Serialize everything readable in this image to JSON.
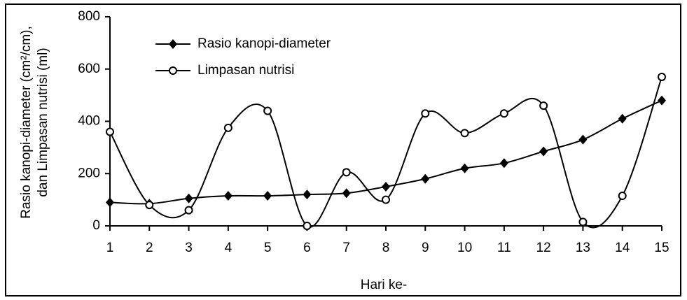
{
  "chart_data": {
    "type": "line",
    "x_label": "Hari ke-",
    "y_label": [
      "Rasio kanopi-diameter (cm²/cm),",
      "dan Limpasan nutrisi (ml)"
    ],
    "x": [
      1,
      2,
      3,
      4,
      5,
      6,
      7,
      8,
      9,
      10,
      11,
      12,
      13,
      14,
      15
    ],
    "xlim": [
      1,
      15
    ],
    "xticks": [
      1,
      2,
      3,
      4,
      5,
      6,
      7,
      8,
      9,
      10,
      11,
      12,
      13,
      14,
      15
    ],
    "ylim": [
      0,
      800
    ],
    "yticks": [
      0,
      200,
      400,
      600,
      800
    ],
    "smooth": true,
    "series": [
      {
        "name": "Rasio kanopi-diameter",
        "color": "#000000",
        "marker": "diamond",
        "values": [
          90,
          85,
          105,
          115,
          115,
          120,
          125,
          150,
          180,
          220,
          240,
          285,
          330,
          410,
          480
        ]
      },
      {
        "name": "Limpasan nutrisi",
        "color": "#000000",
        "marker": "circle",
        "values": [
          360,
          80,
          60,
          375,
          440,
          0,
          205,
          100,
          430,
          355,
          430,
          460,
          15,
          115,
          570
        ]
      }
    ]
  }
}
